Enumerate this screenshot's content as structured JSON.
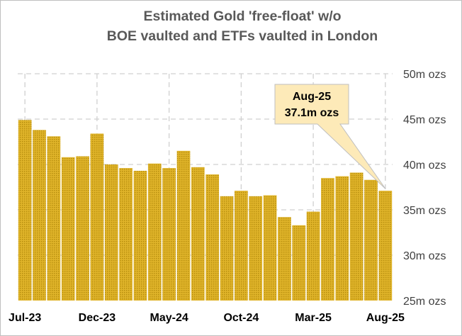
{
  "chart_data": {
    "type": "bar",
    "title": [
      "Estimated Gold 'free-float' w/o",
      "BOE vaulted and ETFs vaulted in London"
    ],
    "xlabel": "",
    "ylabel": "",
    "ylim": [
      25,
      50
    ],
    "y_ticks": [
      {
        "value": 25,
        "label": "25m ozs"
      },
      {
        "value": 30,
        "label": "30m ozs"
      },
      {
        "value": 35,
        "label": "35m ozs"
      },
      {
        "value": 40,
        "label": "40m ozs"
      },
      {
        "value": 45,
        "label": "45m ozs"
      },
      {
        "value": 50,
        "label": "50m ozs"
      }
    ],
    "categories": [
      "Jul-23",
      "Aug-23",
      "Sep-23",
      "Oct-23",
      "Nov-23",
      "Dec-23",
      "Jan-24",
      "Feb-24",
      "Mar-24",
      "Apr-24",
      "May-24",
      "Jun-24",
      "Jul-24",
      "Aug-24",
      "Sep-24",
      "Oct-24",
      "Nov-24",
      "Dec-24",
      "Jan-25",
      "Feb-25",
      "Mar-25",
      "Apr-25",
      "May-25",
      "Jun-25",
      "Jul-25",
      "Aug-25"
    ],
    "x_tick_labels": [
      "Jul-23",
      "Dec-23",
      "May-24",
      "Oct-24",
      "Mar-25",
      "Aug-25"
    ],
    "values": [
      44.9,
      43.8,
      43.1,
      40.8,
      40.9,
      43.4,
      40.0,
      39.6,
      39.3,
      40.1,
      39.6,
      41.5,
      39.7,
      38.9,
      36.5,
      37.1,
      36.5,
      36.6,
      34.2,
      33.3,
      34.8,
      38.5,
      38.7,
      39.1,
      38.3,
      37.1
    ],
    "bar_color": "#d4a017",
    "grid": "dashed",
    "annotation": {
      "category": "Aug-25",
      "lines": [
        "Aug-25",
        "37.1m ozs"
      ],
      "fill": "#fdeab8"
    }
  }
}
